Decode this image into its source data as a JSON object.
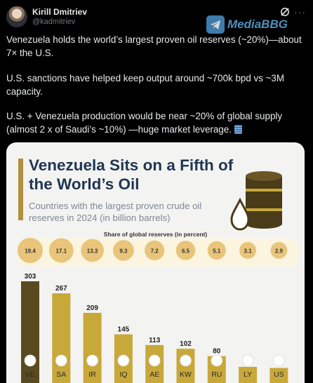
{
  "tweet": {
    "author_name": "Kirill Dmitriev",
    "author_handle": "@kadmitriev",
    "more_label": "···",
    "paragraph1": "Venezuela holds the world’s largest proven oil reserves (~20%)—about 7× the U.S.",
    "paragraph2": "U.S. sanctions have helped keep output around ~700k bpd vs ~3M capacity.",
    "paragraph3": "U.S. + Venezuela production would be near ~20% of global supply (almost 2 x of Saudi’s ~10%) —huge market leverage."
  },
  "watermark": {
    "text": "MediaBBG"
  },
  "colors": {
    "bar_dark": "#5a4a1f",
    "bar_gold": "#c9a83a",
    "bubble_fill": "#e8c57a",
    "title": "#1f3552",
    "accent": "#b08f3e"
  },
  "chart_data": {
    "type": "bar",
    "title": "Venezuela Sits on a Fifth of the World’s Oil",
    "subtitle": "Countries with the largest proven crude oil reserves in 2024 (in billion barrels)",
    "share_label": "Share of global reserves (in percent)",
    "categories": [
      "VE",
      "SA",
      "IR",
      "IQ",
      "AE",
      "KW",
      "RU",
      "LY",
      "US"
    ],
    "values": [
      303,
      267,
      209,
      145,
      113,
      102,
      80,
      48,
      45
    ],
    "shares": [
      19.4,
      17.1,
      13.3,
      9.3,
      7.2,
      6.5,
      5.1,
      3.1,
      2.9
    ],
    "share_labels": [
      "19.4",
      "17.1",
      "13.3",
      "9.3",
      "7.2",
      "6.5",
      "5.1",
      "3.1",
      "2.9"
    ],
    "highlight_index": 0
  }
}
